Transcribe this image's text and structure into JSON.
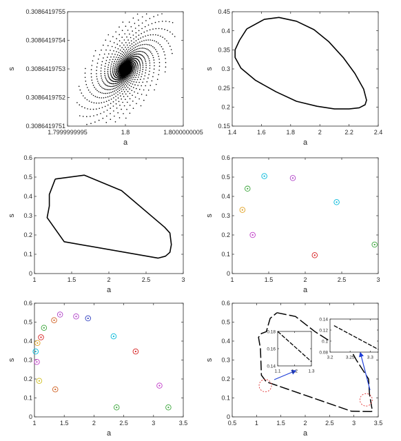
{
  "chart_data": [
    {
      "type": "scatter",
      "xlabel": "a",
      "ylabel": "s",
      "xlim": [
        1.7999999995,
        1.8000000005
      ],
      "ylim": [
        0.3086419751,
        0.3086419755
      ],
      "xticks": [
        1.7999999995,
        1.8,
        1.8000000005
      ],
      "xtick_labels": [
        "1.7999999995",
        "1.8",
        "1.8000000005"
      ],
      "yticks": [
        0.3086419751,
        0.3086419752,
        0.3086419753,
        0.3086419754,
        0.3086419755
      ],
      "ytick_labels": [
        "0.3086419751",
        "0.3086419752",
        "0.3086419753",
        "0.3086419754",
        "0.3086419755"
      ],
      "description_of_points": "spiral of dots converging to fixed point",
      "fixed_point": {
        "a": 1.8,
        "s": 0.3086419753
      },
      "grid": false
    },
    {
      "type": "line",
      "xlabel": "a",
      "ylabel": "s",
      "xlim": [
        1.4,
        2.4
      ],
      "ylim": [
        0.15,
        0.45
      ],
      "xticks": [
        1.4,
        1.6,
        1.8,
        2,
        2.2,
        2.4
      ],
      "xtick_labels": [
        "1.4",
        "1.6",
        "1.8",
        "2",
        "2.2",
        "2.4"
      ],
      "yticks": [
        0.15,
        0.2,
        0.25,
        0.3,
        0.35,
        0.4,
        0.45
      ],
      "ytick_labels": [
        "0.15",
        "0.2",
        "0.25",
        "0.3",
        "0.35",
        "0.4",
        "0.45"
      ],
      "series": [
        {
          "x": [
            1.5,
            1.62,
            1.72,
            1.84,
            1.96,
            2.06,
            2.16,
            2.24,
            2.3,
            2.32,
            2.31,
            2.27,
            2.2,
            2.1,
            1.98,
            1.84,
            1.7,
            1.56,
            1.46,
            1.42,
            1.42,
            1.45,
            1.5
          ],
          "y": [
            0.405,
            0.43,
            0.435,
            0.425,
            0.403,
            0.372,
            0.33,
            0.288,
            0.247,
            0.218,
            0.206,
            0.198,
            0.195,
            0.195,
            0.202,
            0.215,
            0.24,
            0.27,
            0.302,
            0.33,
            0.35,
            0.375,
            0.405
          ]
        }
      ],
      "grid": false
    },
    {
      "type": "line",
      "xlabel": "a",
      "ylabel": "s",
      "xlim": [
        1,
        3
      ],
      "ylim": [
        0,
        0.6
      ],
      "xticks": [
        1,
        1.5,
        2,
        2.5,
        3
      ],
      "xtick_labels": [
        "1",
        "1.5",
        "2",
        "2.5",
        "3"
      ],
      "yticks": [
        0,
        0.1,
        0.2,
        0.3,
        0.4,
        0.5,
        0.6
      ],
      "ytick_labels": [
        "0",
        "0.1",
        "0.2",
        "0.3",
        "0.4",
        "0.5",
        "0.6"
      ],
      "series": [
        {
          "x": [
            1.28,
            1.67,
            2.17,
            2.75,
            2.82,
            2.84,
            2.82,
            2.76,
            2.66,
            1.4,
            1.17,
            1.2,
            1.2,
            1.28
          ],
          "y": [
            0.49,
            0.51,
            0.43,
            0.24,
            0.21,
            0.15,
            0.11,
            0.09,
            0.08,
            0.165,
            0.29,
            0.35,
            0.41,
            0.49
          ]
        }
      ],
      "grid": false
    },
    {
      "type": "scatter",
      "xlabel": "a",
      "ylabel": "s",
      "xlim": [
        1,
        3
      ],
      "ylim": [
        0,
        0.6
      ],
      "xticks": [
        1,
        1.5,
        2,
        2.5,
        3
      ],
      "xtick_labels": [
        "1",
        "1.5",
        "2",
        "2.5",
        "3"
      ],
      "yticks": [
        0,
        0.1,
        0.2,
        0.3,
        0.4,
        0.5,
        0.6
      ],
      "ytick_labels": [
        "0",
        "0.1",
        "0.2",
        "0.3",
        "0.4",
        "0.5",
        "0.6"
      ],
      "points": [
        {
          "x": 1.44,
          "y": 0.505,
          "color": "#00b8d9"
        },
        {
          "x": 1.83,
          "y": 0.495,
          "color": "#b040c8"
        },
        {
          "x": 1.21,
          "y": 0.44,
          "color": "#3aa53a"
        },
        {
          "x": 1.14,
          "y": 0.33,
          "color": "#e0a020"
        },
        {
          "x": 1.28,
          "y": 0.2,
          "color": "#c03ac8"
        },
        {
          "x": 2.43,
          "y": 0.37,
          "color": "#00b8d9"
        },
        {
          "x": 2.13,
          "y": 0.095,
          "color": "#d62020"
        },
        {
          "x": 2.95,
          "y": 0.15,
          "color": "#3aa53a"
        }
      ],
      "grid": false
    },
    {
      "type": "scatter",
      "xlabel": "a",
      "ylabel": "s",
      "xlim": [
        1,
        3.5
      ],
      "ylim": [
        0,
        0.6
      ],
      "xticks": [
        1,
        1.5,
        2,
        2.5,
        3,
        3.5
      ],
      "xtick_labels": [
        "1",
        "1.5",
        "2",
        "2.5",
        "3",
        "3.5"
      ],
      "yticks": [
        0,
        0.1,
        0.2,
        0.3,
        0.4,
        0.5,
        0.6
      ],
      "ytick_labels": [
        "0",
        "0.1",
        "0.2",
        "0.3",
        "0.4",
        "0.5",
        "0.6"
      ],
      "points": [
        {
          "x": 1.43,
          "y": 0.54,
          "color": "#b040c8"
        },
        {
          "x": 1.7,
          "y": 0.53,
          "color": "#b040c8"
        },
        {
          "x": 1.9,
          "y": 0.52,
          "color": "#3040c0"
        },
        {
          "x": 1.33,
          "y": 0.51,
          "color": "#d06020"
        },
        {
          "x": 1.16,
          "y": 0.47,
          "color": "#3aa53a"
        },
        {
          "x": 1.11,
          "y": 0.42,
          "color": "#d62020"
        },
        {
          "x": 1.05,
          "y": 0.39,
          "color": "#e0a020"
        },
        {
          "x": 1.02,
          "y": 0.345,
          "color": "#00b8d9"
        },
        {
          "x": 1.04,
          "y": 0.29,
          "color": "#c03ac8"
        },
        {
          "x": 1.08,
          "y": 0.19,
          "color": "#d0c020"
        },
        {
          "x": 1.35,
          "y": 0.145,
          "color": "#d06020"
        },
        {
          "x": 2.33,
          "y": 0.425,
          "color": "#00b8d9"
        },
        {
          "x": 2.7,
          "y": 0.345,
          "color": "#d62020"
        },
        {
          "x": 3.1,
          "y": 0.165,
          "color": "#c03ac8"
        },
        {
          "x": 2.38,
          "y": 0.05,
          "color": "#3aa53a"
        },
        {
          "x": 3.25,
          "y": 0.05,
          "color": "#3aa53a"
        }
      ],
      "grid": false
    },
    {
      "type": "line",
      "xlabel": "a",
      "ylabel": "s",
      "xlim": [
        0.5,
        3.5
      ],
      "ylim": [
        0,
        0.6
      ],
      "xticks": [
        0.5,
        1,
        1.5,
        2,
        2.5,
        3,
        3.5
      ],
      "xtick_labels": [
        "0.5",
        "1",
        "1.5",
        "2",
        "2.5",
        "3",
        "3.5"
      ],
      "yticks": [
        0,
        0.1,
        0.2,
        0.3,
        0.4,
        0.5,
        0.6
      ],
      "ytick_labels": [
        "0",
        "0.1",
        "0.2",
        "0.3",
        "0.4",
        "0.5",
        "0.6"
      ],
      "series": [
        {
          "style": "dashed",
          "x": [
            1.42,
            1.8,
            2.2,
            2.63,
            2.67,
            2.9,
            3.05,
            3.3,
            3.32,
            3.38,
            3.35,
            2.95,
            1.2,
            1.1,
            1.08,
            1.04,
            1.1,
            1.2,
            1.28,
            1.42
          ],
          "y": [
            0.55,
            0.53,
            0.45,
            0.38,
            0.42,
            0.37,
            0.3,
            0.2,
            0.12,
            0.03,
            0.028,
            0.03,
            0.185,
            0.22,
            0.36,
            0.42,
            0.44,
            0.45,
            0.52,
            0.55
          ]
        }
      ],
      "highlight_circles": [
        {
          "x": 1.18,
          "y": 0.165
        },
        {
          "x": 3.25,
          "y": 0.09
        }
      ],
      "insets": [
        {
          "xlim": [
            1.1,
            1.3
          ],
          "ylim": [
            0.14,
            0.18
          ],
          "xticks": [
            1.1,
            1.2,
            1.3
          ],
          "xtick_labels": [
            "1.1",
            "1.2",
            "1.3"
          ],
          "yticks": [
            0.14,
            0.16,
            0.18
          ],
          "ytick_labels": [
            "0.14",
            "0.16",
            "0.18"
          ],
          "series": {
            "x": [
              1.1,
              1.3
            ],
            "y": [
              0.18,
              0.145
            ]
          }
        },
        {
          "xlim": [
            3.2,
            3.32
          ],
          "ylim": [
            0.08,
            0.14
          ],
          "xticks": [
            3.2,
            3.25,
            3.3
          ],
          "xtick_labels": [
            "3.2",
            "3.25",
            "3.3"
          ],
          "yticks": [
            0.08,
            0.1,
            0.12,
            0.14
          ],
          "ytick_labels": [
            "0.08",
            "0.1",
            "0.12",
            "0.14"
          ],
          "series": {
            "x": [
              3.21,
              3.32
            ],
            "y": [
              0.128,
              0.085
            ]
          }
        }
      ],
      "grid": false
    }
  ]
}
